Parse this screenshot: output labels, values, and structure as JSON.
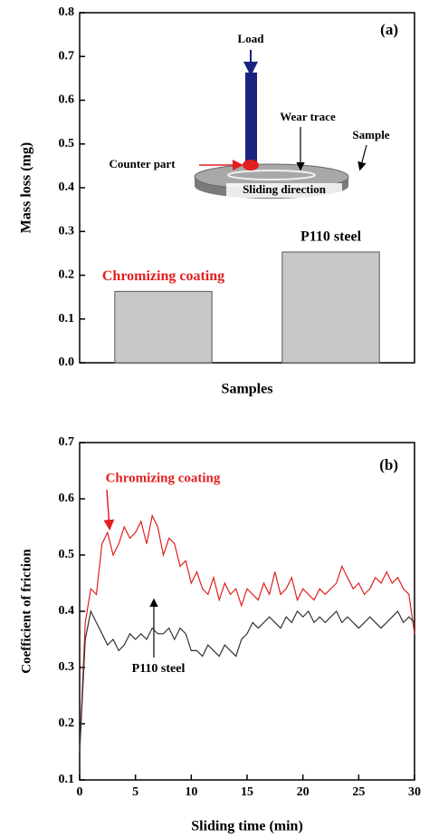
{
  "chart_data": [
    {
      "type": "bar",
      "panel_label": "(a)",
      "ylabel": "Mass loss (mg)",
      "xlabel": "Samples",
      "categories": [
        "Chromizing coating",
        "P110 steel"
      ],
      "category_colors": [
        "#e02020",
        "#000000"
      ],
      "values": [
        0.163,
        0.253
      ],
      "color": "#c8c8c8",
      "ylim": [
        0,
        0.8
      ],
      "yticks": [
        {
          "value": 0,
          "label": "0.0"
        },
        0.1,
        0.2,
        0.3,
        0.4,
        0.5,
        0.6,
        0.7,
        0.8
      ],
      "annotations": [
        "Load",
        "Wear trace",
        "Sample",
        "Counter part",
        "Sliding direction"
      ]
    },
    {
      "type": "line",
      "panel_label": "(b)",
      "ylabel": "Coefficient of friction",
      "xlabel": "Sliding time (min)",
      "x": [
        0,
        0.5,
        1,
        1.5,
        2,
        2.5,
        3,
        3.5,
        4,
        4.5,
        5,
        5.5,
        6,
        6.5,
        7,
        7.5,
        8,
        8.5,
        9,
        9.5,
        10,
        10.5,
        11,
        11.5,
        12,
        12.5,
        13,
        13.5,
        14,
        14.5,
        15,
        15.5,
        16,
        16.5,
        17,
        17.5,
        18,
        18.5,
        19,
        19.5,
        20,
        20.5,
        21,
        21.5,
        22,
        22.5,
        23,
        23.5,
        24,
        24.5,
        25,
        25.5,
        26,
        26.5,
        27,
        27.5,
        28,
        28.5,
        29,
        29.5,
        30
      ],
      "series": [
        {
          "name": "Chromizing coating",
          "color": "#e02020",
          "values": [
            0.15,
            0.38,
            0.44,
            0.43,
            0.52,
            0.54,
            0.5,
            0.52,
            0.55,
            0.53,
            0.54,
            0.56,
            0.52,
            0.57,
            0.55,
            0.5,
            0.53,
            0.52,
            0.48,
            0.49,
            0.45,
            0.47,
            0.44,
            0.43,
            0.46,
            0.42,
            0.45,
            0.43,
            0.44,
            0.41,
            0.44,
            0.43,
            0.42,
            0.45,
            0.43,
            0.47,
            0.43,
            0.44,
            0.46,
            0.42,
            0.44,
            0.43,
            0.42,
            0.44,
            0.43,
            0.44,
            0.45,
            0.48,
            0.46,
            0.44,
            0.45,
            0.43,
            0.44,
            0.46,
            0.45,
            0.47,
            0.45,
            0.46,
            0.44,
            0.43,
            0.36
          ]
        },
        {
          "name": "P110 steel",
          "color": "#333333",
          "values": [
            0.15,
            0.35,
            0.4,
            0.38,
            0.36,
            0.34,
            0.35,
            0.33,
            0.34,
            0.36,
            0.35,
            0.36,
            0.35,
            0.37,
            0.36,
            0.36,
            0.37,
            0.35,
            0.37,
            0.36,
            0.33,
            0.33,
            0.32,
            0.34,
            0.33,
            0.32,
            0.34,
            0.33,
            0.32,
            0.35,
            0.36,
            0.38,
            0.37,
            0.38,
            0.39,
            0.38,
            0.37,
            0.39,
            0.38,
            0.4,
            0.39,
            0.4,
            0.38,
            0.39,
            0.38,
            0.39,
            0.4,
            0.38,
            0.39,
            0.38,
            0.37,
            0.38,
            0.39,
            0.38,
            0.37,
            0.38,
            0.39,
            0.4,
            0.38,
            0.39,
            0.38
          ]
        }
      ],
      "xlim": [
        0,
        30
      ],
      "xticks": [
        0,
        5,
        10,
        15,
        20,
        25,
        30
      ],
      "ylim": [
        0.1,
        0.7
      ],
      "yticks": [
        0.1,
        0.2,
        0.3,
        0.4,
        0.5,
        0.6,
        0.7
      ]
    }
  ]
}
